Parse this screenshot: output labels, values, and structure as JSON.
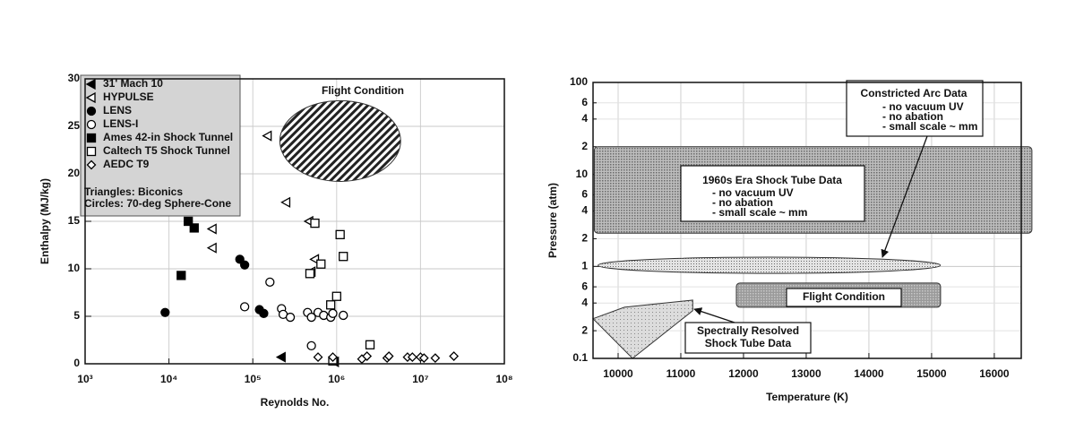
{
  "chart_data": [
    {
      "type": "scatter",
      "xscale": "log",
      "yscale": "linear",
      "x_label": "Reynolds No.",
      "y_label": "Enthalpy (MJ/kg)",
      "xlim": [
        1000,
        100000000
      ],
      "ylim": [
        0,
        30
      ],
      "xticks": [
        {
          "value": 1000,
          "label": "10³"
        },
        {
          "value": 10000,
          "label": "10⁴"
        },
        {
          "value": 100000,
          "label": "10⁵"
        },
        {
          "value": 1000000,
          "label": "10⁶"
        },
        {
          "value": 10000000,
          "label": "10⁷"
        },
        {
          "value": 100000000,
          "label": "10⁸"
        }
      ],
      "yticks": [
        0,
        5,
        10,
        15,
        20,
        25,
        30
      ],
      "grid": true,
      "legend": "upper left",
      "legend_notes": [
        "Triangles: Biconics",
        "Circles: 70-deg Sphere-Cone"
      ],
      "series": [
        {
          "name": "31' Mach 10",
          "color": "#000000",
          "marker": "triangle-left",
          "filled": true,
          "x": [
            220000,
            950000
          ],
          "values": [
            0.7,
            0.2
          ]
        },
        {
          "name": "HYPULSE",
          "color": "#000000",
          "marker": "triangle-left",
          "filled": false,
          "x": [
            33000,
            33000,
            150000,
            250000,
            470000,
            550000,
            500000
          ],
          "values": [
            14.2,
            12.2,
            24,
            17,
            15,
            11,
            9.7
          ]
        },
        {
          "name": "LENS",
          "color": "#000000",
          "marker": "circle",
          "filled": true,
          "x": [
            9000,
            70000,
            80000,
            120000,
            135000
          ],
          "values": [
            5.4,
            11,
            10.4,
            5.7,
            5.3
          ]
        },
        {
          "name": "LENS-I",
          "color": "#000000",
          "marker": "circle",
          "filled": false,
          "x": [
            80000,
            160000,
            220000,
            230000,
            280000,
            450000,
            500000,
            600000,
            700000,
            850000,
            900000,
            1200000,
            500000,
            900000
          ],
          "values": [
            6,
            8.6,
            5.8,
            5.2,
            4.9,
            5.4,
            4.9,
            5.4,
            5.1,
            4.9,
            5.3,
            5.1,
            1.9,
            0.5
          ]
        },
        {
          "name": "Ames 42-in Shock Tunnel",
          "color": "#000000",
          "marker": "square",
          "filled": true,
          "x": [
            14000,
            17000,
            20000
          ],
          "values": [
            9.3,
            15,
            14.3
          ]
        },
        {
          "name": "Caltech T5 Shock Tunnel",
          "color": "#000000",
          "marker": "square",
          "filled": false,
          "x": [
            480000,
            550000,
            650000,
            1100000,
            1200000,
            1000000,
            850000,
            2500000,
            900000
          ],
          "values": [
            9.5,
            14.8,
            10.5,
            13.6,
            11.3,
            7.1,
            6.2,
            2,
            0.3
          ]
        },
        {
          "name": "AEDC T9",
          "color": "#000000",
          "marker": "diamond",
          "filled": false,
          "x": [
            600000,
            900000,
            2000000,
            2300000,
            4000000,
            4200000,
            7000000,
            8000000,
            10000000,
            11000000,
            15000000,
            25000000
          ],
          "values": [
            0.7,
            0.7,
            0.5,
            0.8,
            0.6,
            0.8,
            0.7,
            0.7,
            0.7,
            0.6,
            0.6,
            0.8
          ]
        }
      ],
      "regions": [
        {
          "label": [
            "Flight Condition"
          ],
          "shape": "ellipse",
          "fill": "hatch",
          "xlim": [
            210000,
            5800000
          ],
          "ylim": [
            19.2,
            27.7
          ]
        }
      ]
    },
    {
      "type": "region",
      "xscale": "linear",
      "yscale": "log",
      "x_label": "Temperature (K)",
      "y_label": "Pressure (atm)",
      "xlim": [
        9600,
        16430
      ],
      "ylim": [
        0.1,
        100
      ],
      "xticks": [
        10000,
        11000,
        12000,
        13000,
        14000,
        15000,
        16000
      ],
      "yticks": [
        0.1,
        {
          "value": 0.2,
          "label": "2"
        },
        {
          "value": 0.4,
          "label": "4"
        },
        {
          "value": 0.6,
          "label": "6"
        },
        1,
        {
          "value": 2,
          "label": "2"
        },
        {
          "value": 4,
          "label": "4"
        },
        {
          "value": 6,
          "label": "6"
        },
        10,
        {
          "value": 20,
          "label": "2"
        },
        {
          "value": 40,
          "label": "4"
        },
        {
          "value": 60,
          "label": "6"
        },
        100
      ],
      "grid": true,
      "regions": [
        {
          "label": [
            "1960s Era Shock Tube Data"
          ],
          "notes": [
            "- no vacuum UV",
            "- no abation",
            "- small scale ~ mm"
          ],
          "shape": "rect",
          "fill": "dots",
          "xlim": [
            9620,
            16600
          ],
          "ylim": [
            2.3,
            20
          ]
        },
        {
          "label": [
            "Constricted Arc Data"
          ],
          "notes": [
            "- no vacuum UV",
            "- no abation",
            "- small scale ~ mm"
          ],
          "shape": "ellipse",
          "fill": "fine",
          "xlim": [
            9680,
            15140
          ],
          "ylim": [
            0.84,
            1.26
          ]
        },
        {
          "label": [
            "Flight Condition"
          ],
          "shape": "rect",
          "fill": "gray",
          "xlim": [
            11886,
            15143
          ],
          "ylim": [
            0.36,
            0.66
          ]
        },
        {
          "label": [
            "Spectrally Resolved",
            "Shock Tube Data"
          ],
          "shape": "polygon",
          "fill": "light",
          "points": [
            [
              9600,
              0.27
            ],
            [
              10100,
              0.36
            ],
            [
              11190,
              0.43
            ],
            [
              11190,
              0.33
            ],
            [
              10230,
              0.1
            ]
          ]
        }
      ]
    }
  ]
}
